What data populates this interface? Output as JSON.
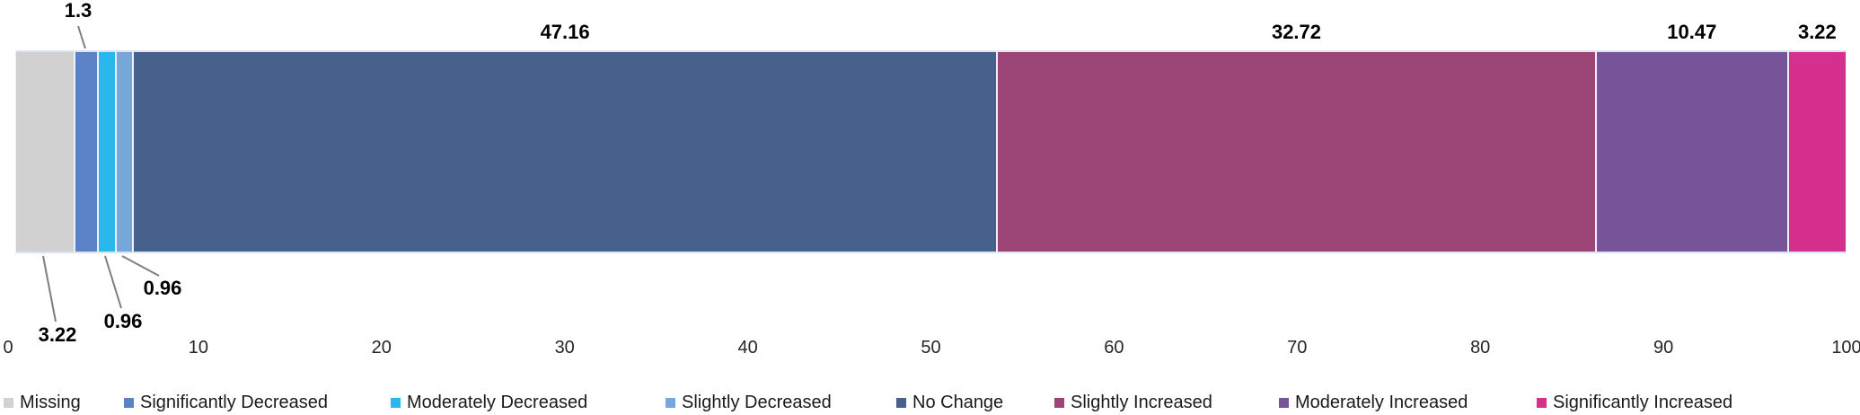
{
  "chart_data": {
    "type": "bar",
    "subtype": "horizontal-stacked-percent",
    "title": "",
    "xlabel": "",
    "ylabel": "",
    "xlim": [
      0,
      100
    ],
    "x_tick_labels": [
      "0",
      "10",
      "20",
      "30",
      "40",
      "50",
      "60",
      "70",
      "80",
      "90",
      "100"
    ],
    "x_tick_values": [
      0,
      10,
      20,
      30,
      40,
      50,
      60,
      70,
      80,
      90,
      100
    ],
    "grid": false,
    "legend_position": "bottom",
    "segments": [
      {
        "label": "Missing",
        "value": 3.22,
        "value_label": "3.22",
        "color": "#d1d1d1",
        "label_placement": "callout-below"
      },
      {
        "label": "Significantly Decreased",
        "value": 1.3,
        "value_label": "1.3",
        "color": "#5b82c6",
        "label_placement": "callout-above"
      },
      {
        "label": "Moderately Decreased",
        "value": 0.96,
        "value_label": "0.96",
        "color": "#2ab7ec",
        "label_placement": "callout-below"
      },
      {
        "label": "Slightly Decreased",
        "value": 0.96,
        "value_label": "0.96",
        "color": "#76a7db",
        "label_placement": "callout-below"
      },
      {
        "label": "No Change",
        "value": 47.16,
        "value_label": "47.16",
        "color": "#45618c",
        "label_placement": "above-center"
      },
      {
        "label": "Slightly Increased",
        "value": 32.72,
        "value_label": "32.72",
        "color": "#9b4577",
        "label_placement": "above-center"
      },
      {
        "label": "Moderately Increased",
        "value": 10.47,
        "value_label": "10.47",
        "color": "#775499",
        "label_placement": "above-center"
      },
      {
        "label": "Significantly Increased",
        "value": 3.22,
        "value_label": "3.22",
        "color": "#d6308f",
        "label_placement": "above-center"
      }
    ],
    "legend": [
      "Missing",
      "Significantly Decreased",
      "Moderately Decreased",
      "Slightly Decreased",
      "No Change",
      "Slightly Increased",
      "Moderately Increased",
      "Significantly Increased"
    ],
    "leader_line_color": "#7f7f7f"
  }
}
